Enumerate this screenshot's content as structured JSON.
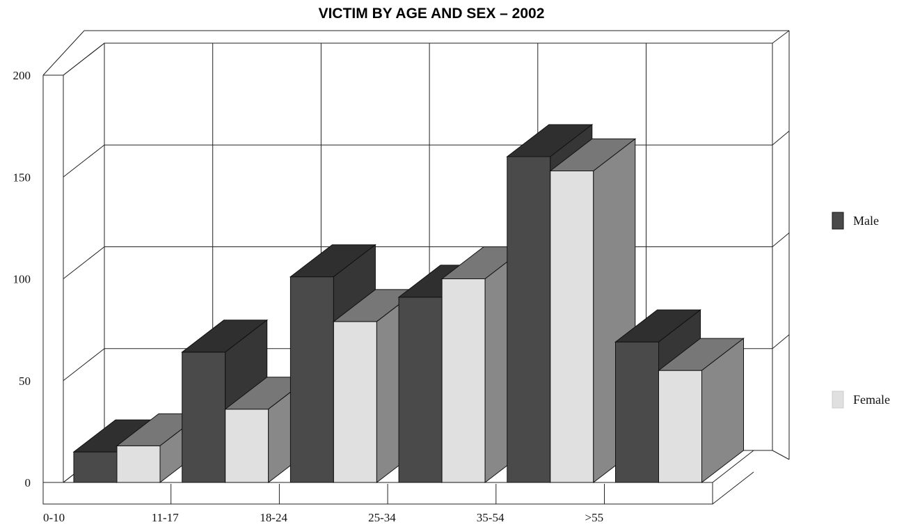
{
  "chart_data": {
    "type": "bar",
    "title": "VICTIM BY AGE AND SEX – 2002",
    "xlabel": "",
    "ylabel": "",
    "categories": [
      "0-10",
      "11-17",
      "18-24",
      "25-34",
      "35-54",
      ">55"
    ],
    "series": [
      {
        "name": "Male",
        "values": [
          15,
          64,
          101,
          91,
          160,
          69
        ],
        "color": "#4a4a4a"
      },
      {
        "name": "Female",
        "values": [
          18,
          36,
          79,
          100,
          153,
          55
        ],
        "color": "#e0e0e0"
      }
    ],
    "yticks": [
      "0",
      "50",
      "100",
      "150",
      "200"
    ],
    "ylim": [
      0,
      200
    ],
    "grid": true,
    "legend": "right",
    "style": "3d"
  }
}
